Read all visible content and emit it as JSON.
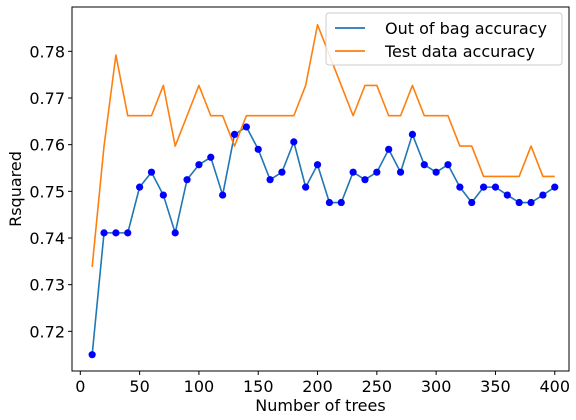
{
  "chart_data": {
    "type": "line",
    "title": "",
    "xlabel": "Number of trees",
    "ylabel": "Rsquared",
    "xlim": [
      -7,
      412
    ],
    "ylim": [
      0.7115,
      0.7895
    ],
    "xticks": [
      0,
      50,
      100,
      150,
      200,
      250,
      300,
      350,
      400
    ],
    "yticks": [
      0.72,
      0.73,
      0.74,
      0.75,
      0.76,
      0.77,
      0.78
    ],
    "grid": false,
    "legend_position": "top-right",
    "x": [
      10,
      20,
      30,
      40,
      50,
      60,
      70,
      80,
      90,
      100,
      110,
      120,
      130,
      140,
      150,
      160,
      170,
      180,
      190,
      200,
      210,
      220,
      230,
      240,
      250,
      260,
      270,
      280,
      290,
      300,
      310,
      320,
      330,
      340,
      350,
      360,
      370,
      380,
      390,
      400
    ],
    "series": [
      {
        "name": "Out of bag accuracy",
        "color": "#1f77b4",
        "marker_color": "#0000ff",
        "markers": true,
        "values": [
          0.715,
          0.7411,
          0.7411,
          0.7411,
          0.7509,
          0.7541,
          0.7492,
          0.7411,
          0.7525,
          0.7557,
          0.7573,
          0.7492,
          0.7622,
          0.7638,
          0.759,
          0.7525,
          0.7541,
          0.7606,
          0.7509,
          0.7557,
          0.7476,
          0.7476,
          0.7541,
          0.7525,
          0.7541,
          0.759,
          0.7541,
          0.7622,
          0.7557,
          0.7541,
          0.7557,
          0.7509,
          0.7476,
          0.7509,
          0.7509,
          0.7492,
          0.7476,
          0.7476,
          0.7492,
          0.7509
        ]
      },
      {
        "name": "Test data accuracy",
        "color": "#ff7f0e",
        "markers": false,
        "values": [
          0.7338,
          0.7597,
          0.7792,
          0.7662,
          0.7662,
          0.7662,
          0.7727,
          0.7597,
          0.7662,
          0.7727,
          0.7662,
          0.7662,
          0.7597,
          0.7662,
          0.7662,
          0.7662,
          0.7662,
          0.7662,
          0.7727,
          0.7857,
          0.7792,
          0.7727,
          0.7662,
          0.7727,
          0.7727,
          0.7662,
          0.7662,
          0.7727,
          0.7662,
          0.7662,
          0.7662,
          0.7597,
          0.7597,
          0.7532,
          0.7532,
          0.7532,
          0.7532,
          0.7597,
          0.7532,
          0.7532
        ]
      }
    ]
  }
}
